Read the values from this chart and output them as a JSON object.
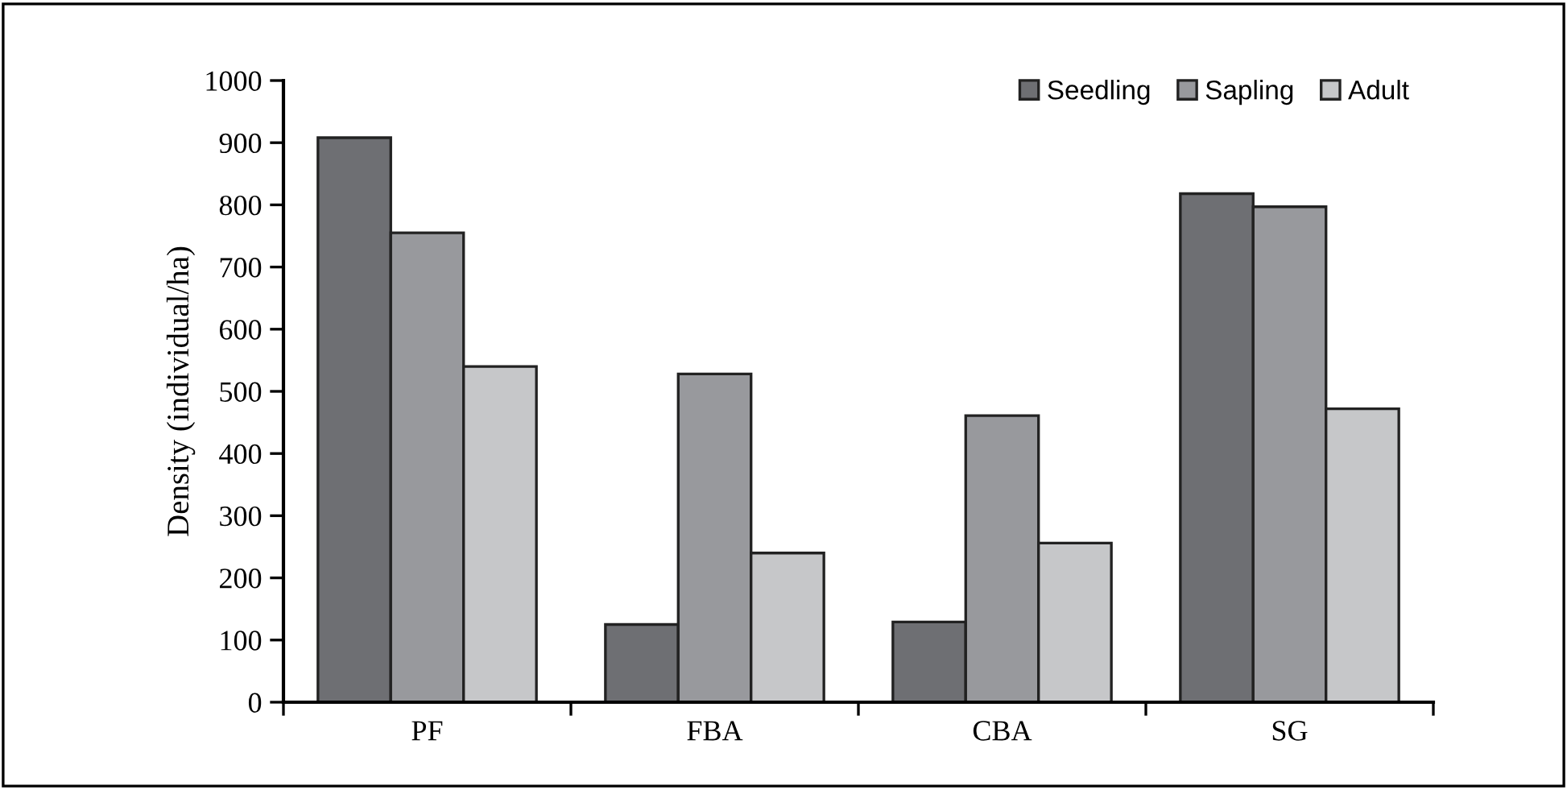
{
  "chart_data": {
    "type": "bar",
    "ylabel": "Density (individual/ha)",
    "categories": [
      "PF",
      "FBA",
      "CBA",
      "SG"
    ],
    "series": [
      {
        "name": "Seedling",
        "color": "#6e6f73",
        "values": [
          908,
          125,
          129,
          818
        ]
      },
      {
        "name": "Sapling",
        "color": "#98999d",
        "values": [
          755,
          528,
          461,
          797
        ]
      },
      {
        "name": "Adult",
        "color": "#c6c7c9",
        "values": [
          540,
          240,
          256,
          472
        ]
      }
    ],
    "ylim": [
      0,
      1000
    ],
    "yticks": [
      0,
      100,
      200,
      300,
      400,
      500,
      600,
      700,
      800,
      900,
      1000
    ],
    "grid": false,
    "legend": "top right"
  }
}
